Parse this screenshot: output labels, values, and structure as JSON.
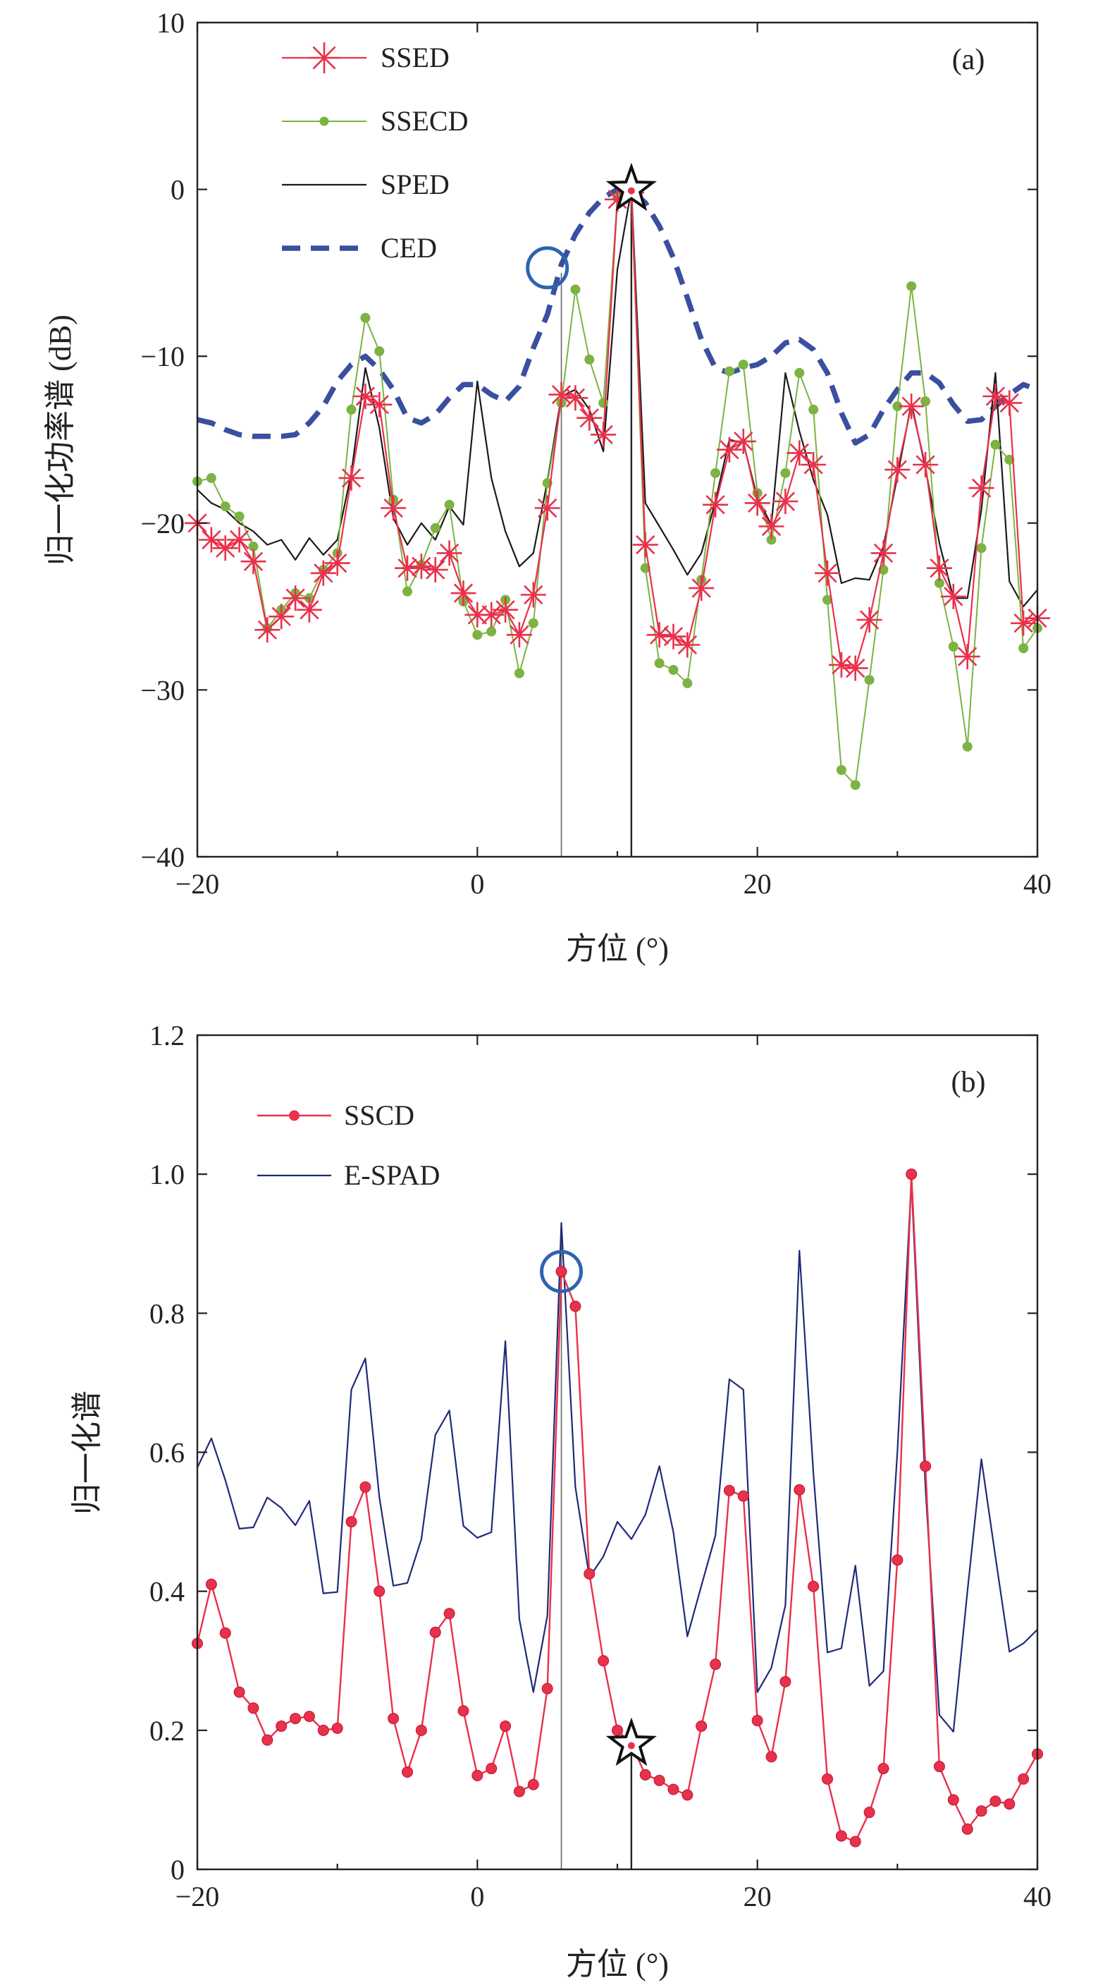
{
  "chart_data": [
    {
      "panel": "(a)",
      "type": "line",
      "xlabel": "方位 (°)",
      "ylabel": "归一化功率谱 (dB)",
      "xlim": [
        -20,
        40
      ],
      "ylim": [
        -40,
        10
      ],
      "xticks": [
        -20,
        0,
        20,
        40
      ],
      "yticks": [
        10,
        0,
        -10,
        -20,
        -30,
        -40
      ],
      "grid": false,
      "legend_position": "top-left",
      "colors": {
        "SSED": "#e8314b",
        "SSECD": "#7cb342",
        "SPED": "#1a1a1a",
        "CED": "#3a4fa0"
      },
      "series": [
        {
          "name": "SSED",
          "x": [
            -20,
            -19,
            -18,
            -17,
            -16,
            -15,
            -14,
            -13,
            -12,
            -11,
            -10,
            -9,
            -8,
            -7,
            -6,
            -5,
            -4,
            -3,
            -2,
            -1,
            0,
            1,
            2,
            3,
            4,
            5,
            6,
            7,
            8,
            9,
            10,
            11,
            12,
            13,
            14,
            15,
            16,
            17,
            18,
            19,
            20,
            21,
            22,
            23,
            24,
            25,
            26,
            27,
            28,
            29,
            30,
            31,
            32,
            33,
            34,
            35,
            36,
            37,
            38,
            39,
            40
          ],
          "y": [
            -20,
            -21,
            -21.5,
            -21,
            -22.3,
            -26.4,
            -25.6,
            -24.5,
            -25.2,
            -23,
            -22.4,
            -17.3,
            -12.4,
            -12.9,
            -19.1,
            -22.7,
            -22.6,
            -22.8,
            -21.8,
            -24.2,
            -25.5,
            -25.5,
            -25.2,
            -26.7,
            -24.3,
            -19.1,
            -12.3,
            -12.5,
            -13.7,
            -14.7,
            -0.6,
            -0.2,
            -21.3,
            -26.7,
            -26.8,
            -27.3,
            -23.9,
            -18.9,
            -15.6,
            -15.1,
            -18.8,
            -20.2,
            -18.7,
            -15.8,
            -16.5,
            -23,
            -28.5,
            -28.7,
            -25.8,
            -21.8,
            -16.8,
            -13,
            -16.5,
            -22.7,
            -24.4,
            -28,
            -17.9,
            -12.4,
            -12.8,
            -26,
            -25.7
          ]
        },
        {
          "name": "SSECD",
          "x": [
            -20,
            -19,
            -18,
            -17,
            -16,
            -15,
            -14,
            -13,
            -12,
            -11,
            -10,
            -9,
            -8,
            -7,
            -6,
            -5,
            -4,
            -3,
            -2,
            -1,
            0,
            1,
            2,
            3,
            4,
            5,
            6,
            7,
            8,
            9,
            10,
            11,
            12,
            13,
            14,
            15,
            16,
            17,
            18,
            19,
            20,
            21,
            22,
            23,
            24,
            25,
            26,
            27,
            28,
            29,
            30,
            31,
            32,
            33,
            34,
            35,
            36,
            37,
            38,
            39,
            40
          ],
          "y": [
            -17.5,
            -17.3,
            -19,
            -19.6,
            -21.4,
            -26.3,
            -25.2,
            -24.2,
            -24.5,
            -22.8,
            -21.8,
            -13.2,
            -7.7,
            -9.7,
            -18.6,
            -24.1,
            -22.5,
            -20.3,
            -18.9,
            -24.7,
            -26.7,
            -26.5,
            -24.6,
            -29,
            -26,
            -17.6,
            -12.8,
            -6,
            -10.2,
            -12.8,
            -0.5,
            -0.3,
            -22.7,
            -28.4,
            -28.8,
            -29.6,
            -23.4,
            -17,
            -10.9,
            -10.5,
            -18.2,
            -21,
            -17,
            -11,
            -13.2,
            -24.6,
            -34.8,
            -35.7,
            -29.4,
            -22.8,
            -13,
            -5.8,
            -12.7,
            -23.6,
            -27.4,
            -33.4,
            -21.5,
            -15.3,
            -16.2,
            -27.5,
            -26.3
          ]
        },
        {
          "name": "SPED",
          "x": [
            -20,
            -19,
            -18,
            -17,
            -16,
            -15,
            -14,
            -13,
            -12,
            -11,
            -10,
            -9,
            -8,
            -7,
            -6,
            -5,
            -4,
            -3,
            -2,
            -1,
            0,
            1,
            2,
            3,
            4,
            5,
            6,
            7,
            8,
            9,
            10,
            11,
            12,
            13,
            14,
            15,
            16,
            17,
            18,
            19,
            20,
            21,
            22,
            23,
            24,
            25,
            26,
            27,
            28,
            29,
            30,
            31,
            32,
            33,
            34,
            35,
            36,
            37,
            38,
            39,
            40
          ],
          "y": [
            -18,
            -18.8,
            -19.2,
            -20,
            -20.5,
            -21.3,
            -21,
            -22.2,
            -20.9,
            -21.9,
            -21,
            -17,
            -10.7,
            -14.3,
            -19.7,
            -21.3,
            -20,
            -21,
            -19,
            -20.1,
            -11.5,
            -17.3,
            -20.5,
            -22.6,
            -21.8,
            -17.5,
            -12.4,
            -12,
            -13.2,
            -15.7,
            -4.8,
            0,
            -18.8,
            -20.2,
            -21.6,
            -23.1,
            -21.8,
            -18.7,
            -15,
            -15.2,
            -18.5,
            -20.1,
            -11,
            -14.5,
            -17.4,
            -19.5,
            -23.6,
            -23.3,
            -23.4,
            -21.4,
            -17.2,
            -12.8,
            -16.7,
            -21.2,
            -24.5,
            -24.5,
            -19.2,
            -11,
            -23.5,
            -25,
            -24
          ]
        },
        {
          "name": "CED",
          "x": [
            -20,
            -19,
            -18,
            -17,
            -16,
            -15,
            -14,
            -13,
            -12,
            -11,
            -10,
            -9,
            -8,
            -7,
            -6,
            -5,
            -4,
            -3,
            -2,
            -1,
            0,
            1,
            2,
            3,
            4,
            5,
            6,
            7,
            8,
            9,
            10,
            11,
            12,
            13,
            14,
            15,
            16,
            17,
            18,
            19,
            20,
            21,
            22,
            23,
            24,
            25,
            26,
            27,
            28,
            29,
            30,
            31,
            32,
            33,
            34,
            35,
            36,
            37,
            38,
            39,
            40
          ],
          "y": [
            -13.8,
            -14,
            -14.4,
            -14.7,
            -14.8,
            -14.8,
            -14.8,
            -14.7,
            -14,
            -13,
            -11.5,
            -10.5,
            -10,
            -10.8,
            -12,
            -13.7,
            -14,
            -13.5,
            -12.5,
            -11.7,
            -11.7,
            -12.3,
            -12.7,
            -11.8,
            -9.5,
            -7.5,
            -4.5,
            -2.7,
            -1.4,
            -0.5,
            0,
            -0.1,
            -0.8,
            -2.2,
            -4.1,
            -6.5,
            -9,
            -10.7,
            -11,
            -10.7,
            -10.5,
            -10,
            -9.2,
            -9,
            -9.6,
            -11,
            -13.4,
            -15.2,
            -14.7,
            -13.2,
            -12,
            -11,
            -11,
            -11.6,
            -12.9,
            -13.9,
            -13.8,
            -13,
            -12.3,
            -11.7,
            -12
          ]
        }
      ],
      "markers": [
        {
          "shape": "circle",
          "x": 5,
          "y": -4.7
        },
        {
          "shape": "star",
          "x": 11,
          "y": 0
        }
      ],
      "reference_lines_x": [
        6,
        11
      ]
    },
    {
      "panel": "(b)",
      "type": "line",
      "xlabel": "方位 (°)",
      "ylabel": "归一化谱",
      "xlim": [
        -20,
        40
      ],
      "ylim": [
        0,
        1.2
      ],
      "xticks": [
        -20,
        0,
        20,
        40
      ],
      "yticks": [
        1.2,
        1.0,
        0.8,
        0.6,
        0.4,
        0.2,
        0
      ],
      "grid": false,
      "legend_position": "top-left",
      "colors": {
        "SSCD": "#e8314b",
        "E-SPAD": "#1f2a78"
      },
      "series": [
        {
          "name": "SSCD",
          "x": [
            -20,
            -19,
            -18,
            -17,
            -16,
            -15,
            -14,
            -13,
            -12,
            -11,
            -10,
            -9,
            -8,
            -7,
            -6,
            -5,
            -4,
            -3,
            -2,
            -1,
            0,
            1,
            2,
            3,
            4,
            5,
            6,
            7,
            8,
            9,
            10,
            11,
            12,
            13,
            14,
            15,
            16,
            17,
            18,
            19,
            20,
            21,
            22,
            23,
            24,
            25,
            26,
            27,
            28,
            29,
            30,
            31,
            32,
            33,
            34,
            35,
            36,
            37,
            38,
            39,
            40
          ],
          "y": [
            0.325,
            0.41,
            0.34,
            0.255,
            0.232,
            0.186,
            0.206,
            0.217,
            0.22,
            0.2,
            0.203,
            0.5,
            0.55,
            0.4,
            0.217,
            0.14,
            0.2,
            0.341,
            0.368,
            0.228,
            0.135,
            0.145,
            0.206,
            0.112,
            0.122,
            0.26,
            0.86,
            0.81,
            0.425,
            0.3,
            0.2,
            0.18,
            0.136,
            0.128,
            0.115,
            0.107,
            0.206,
            0.295,
            0.545,
            0.537,
            0.214,
            0.162,
            0.27,
            0.546,
            0.407,
            0.13,
            0.048,
            0.04,
            0.082,
            0.145,
            0.445,
            1.0,
            0.58,
            0.148,
            0.1,
            0.058,
            0.084,
            0.098,
            0.094,
            0.13,
            0.166
          ]
        },
        {
          "name": "E-SPAD",
          "x": [
            -20,
            -19,
            -18,
            -17,
            -16,
            -15,
            -14,
            -13,
            -12,
            -11,
            -10,
            -9,
            -8,
            -7,
            -6,
            -5,
            -4,
            -3,
            -2,
            -1,
            0,
            1,
            2,
            3,
            4,
            5,
            6,
            7,
            8,
            9,
            10,
            11,
            12,
            13,
            14,
            15,
            16,
            17,
            18,
            19,
            20,
            21,
            22,
            23,
            24,
            25,
            26,
            27,
            28,
            29,
            30,
            31,
            32,
            33,
            34,
            35,
            36,
            37,
            38,
            39,
            40
          ],
          "y": [
            0.578,
            0.62,
            0.56,
            0.49,
            0.492,
            0.535,
            0.52,
            0.495,
            0.53,
            0.397,
            0.399,
            0.69,
            0.735,
            0.535,
            0.408,
            0.412,
            0.475,
            0.625,
            0.66,
            0.494,
            0.477,
            0.485,
            0.76,
            0.36,
            0.255,
            0.365,
            0.93,
            0.55,
            0.42,
            0.45,
            0.5,
            0.475,
            0.51,
            0.58,
            0.485,
            0.335,
            0.408,
            0.48,
            0.705,
            0.69,
            0.255,
            0.29,
            0.38,
            0.89,
            0.57,
            0.312,
            0.318,
            0.437,
            0.264,
            0.285,
            0.6,
            0.99,
            0.55,
            0.222,
            0.198,
            0.4,
            0.59,
            0.45,
            0.313,
            0.325,
            0.345
          ]
        }
      ],
      "markers": [
        {
          "shape": "circle",
          "x": 6,
          "y": 0.86
        },
        {
          "shape": "star",
          "x": 11,
          "y": 0.18
        }
      ],
      "reference_lines_x": [
        6,
        11
      ]
    }
  ],
  "text": {
    "panel_a": {
      "label": "(a)",
      "ylabel": "归一化功率谱 (dB)",
      "xlabel": "方位 (°)",
      "legend": [
        "SSED",
        "SSECD",
        "SPED",
        "CED"
      ]
    },
    "panel_b": {
      "label": "(b)",
      "ylabel": "归一化谱",
      "xlabel": "方位 (°)",
      "legend": [
        "SSCD",
        "E-SPAD"
      ]
    }
  }
}
